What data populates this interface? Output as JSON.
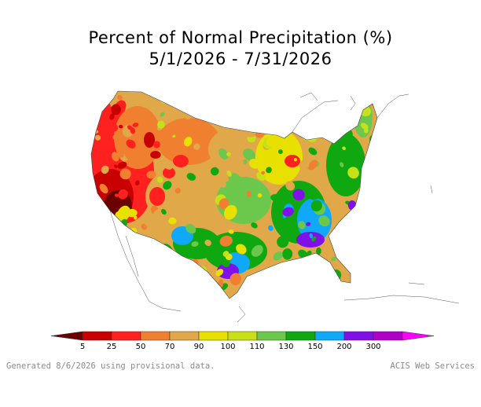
{
  "title_line1": "Percent of Normal Precipitation (%)",
  "title_line2": "5/1/2026 - 7/31/2026",
  "legend": {
    "ticks": [
      "5",
      "25",
      "50",
      "70",
      "90",
      "100",
      "110",
      "130",
      "150",
      "200",
      "300"
    ],
    "colors": [
      "#6b0000",
      "#c80000",
      "#ff2020",
      "#f08030",
      "#e0a848",
      "#e8e000",
      "#c8e018",
      "#6cc84c",
      "#10a810",
      "#10a8f8",
      "#8010e8",
      "#b000c8",
      "#ff00ff"
    ]
  },
  "map": {
    "region": "Contiguous United States",
    "color_drawing_order": [
      "#6b0000",
      "#c80000",
      "#ff2020",
      "#f08030",
      "#e0a848",
      "#e8e000",
      "#c8e018",
      "#6cc84c",
      "#10a810",
      "#10a8f8",
      "#8010e8",
      "#b000c8",
      "#ff00ff"
    ]
  },
  "footer": {
    "left": "Generated 8/6/2026 using provisional data.",
    "right": "ACIS Web Services"
  }
}
